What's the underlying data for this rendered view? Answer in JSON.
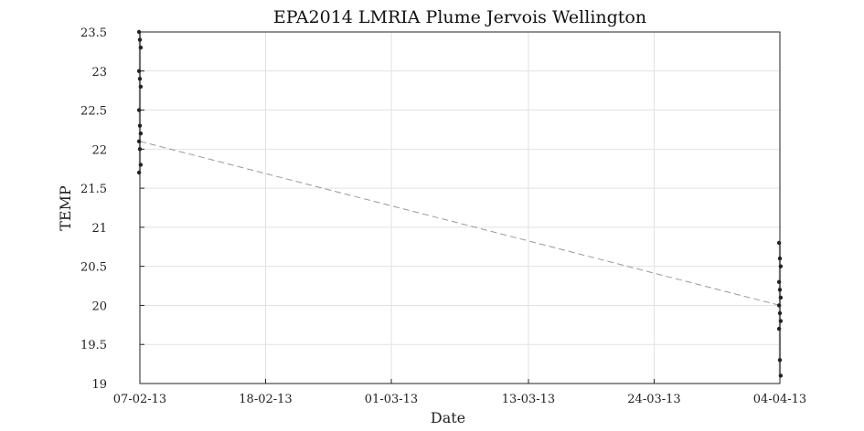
{
  "chart_data": {
    "type": "scatter",
    "title": "EPA2014 LMRIA Plume Jervois Wellington",
    "xlabel": "Date",
    "ylabel": "TEMP",
    "x_ticks": [
      "07-02-13",
      "18-02-13",
      "01-03-13",
      "13-03-13",
      "24-03-13",
      "04-04-13"
    ],
    "y_ticks": [
      "19",
      "19.5",
      "20",
      "20.5",
      "21",
      "21.5",
      "22",
      "22.5",
      "23",
      "23.5"
    ],
    "xlim": [
      "2013-02-07",
      "2013-04-04"
    ],
    "ylim": [
      19,
      23.5
    ],
    "grid": true,
    "legend": "none",
    "colors": {
      "points": "#222222",
      "profile": "#bbbbbb",
      "trend": "#999999"
    },
    "series": [
      {
        "date": "2013-02-07",
        "points": [
          {
            "x": "2013-02-07",
            "y": 23.5
          },
          {
            "x": "2013-02-07",
            "y": 23.4
          },
          {
            "x": "2013-02-07",
            "y": 23.3
          },
          {
            "x": "2013-02-07",
            "y": 23.0
          },
          {
            "x": "2013-02-07",
            "y": 22.9
          },
          {
            "x": "2013-02-07",
            "y": 22.8
          },
          {
            "x": "2013-02-07",
            "y": 22.5
          },
          {
            "x": "2013-02-07",
            "y": 22.3
          },
          {
            "x": "2013-02-07",
            "y": 22.2
          },
          {
            "x": "2013-02-07",
            "y": 22.1
          },
          {
            "x": "2013-02-07",
            "y": 22.0
          },
          {
            "x": "2013-02-07",
            "y": 21.8
          },
          {
            "x": "2013-02-07",
            "y": 21.7
          }
        ]
      },
      {
        "date": "2013-04-04",
        "points": [
          {
            "x": "2013-04-04",
            "y": 20.8
          },
          {
            "x": "2013-04-04",
            "y": 20.6
          },
          {
            "x": "2013-04-04",
            "y": 20.5
          },
          {
            "x": "2013-04-04",
            "y": 20.3
          },
          {
            "x": "2013-04-04",
            "y": 20.2
          },
          {
            "x": "2013-04-04",
            "y": 20.1
          },
          {
            "x": "2013-04-04",
            "y": 20.0
          },
          {
            "x": "2013-04-04",
            "y": 19.9
          },
          {
            "x": "2013-04-04",
            "y": 19.8
          },
          {
            "x": "2013-04-04",
            "y": 19.7
          },
          {
            "x": "2013-04-04",
            "y": 19.3
          },
          {
            "x": "2013-04-04",
            "y": 19.1
          }
        ]
      }
    ],
    "trend_line": [
      {
        "x": "2013-02-07",
        "y": 22.1
      },
      {
        "x": "2013-04-04",
        "y": 20.0
      }
    ]
  }
}
